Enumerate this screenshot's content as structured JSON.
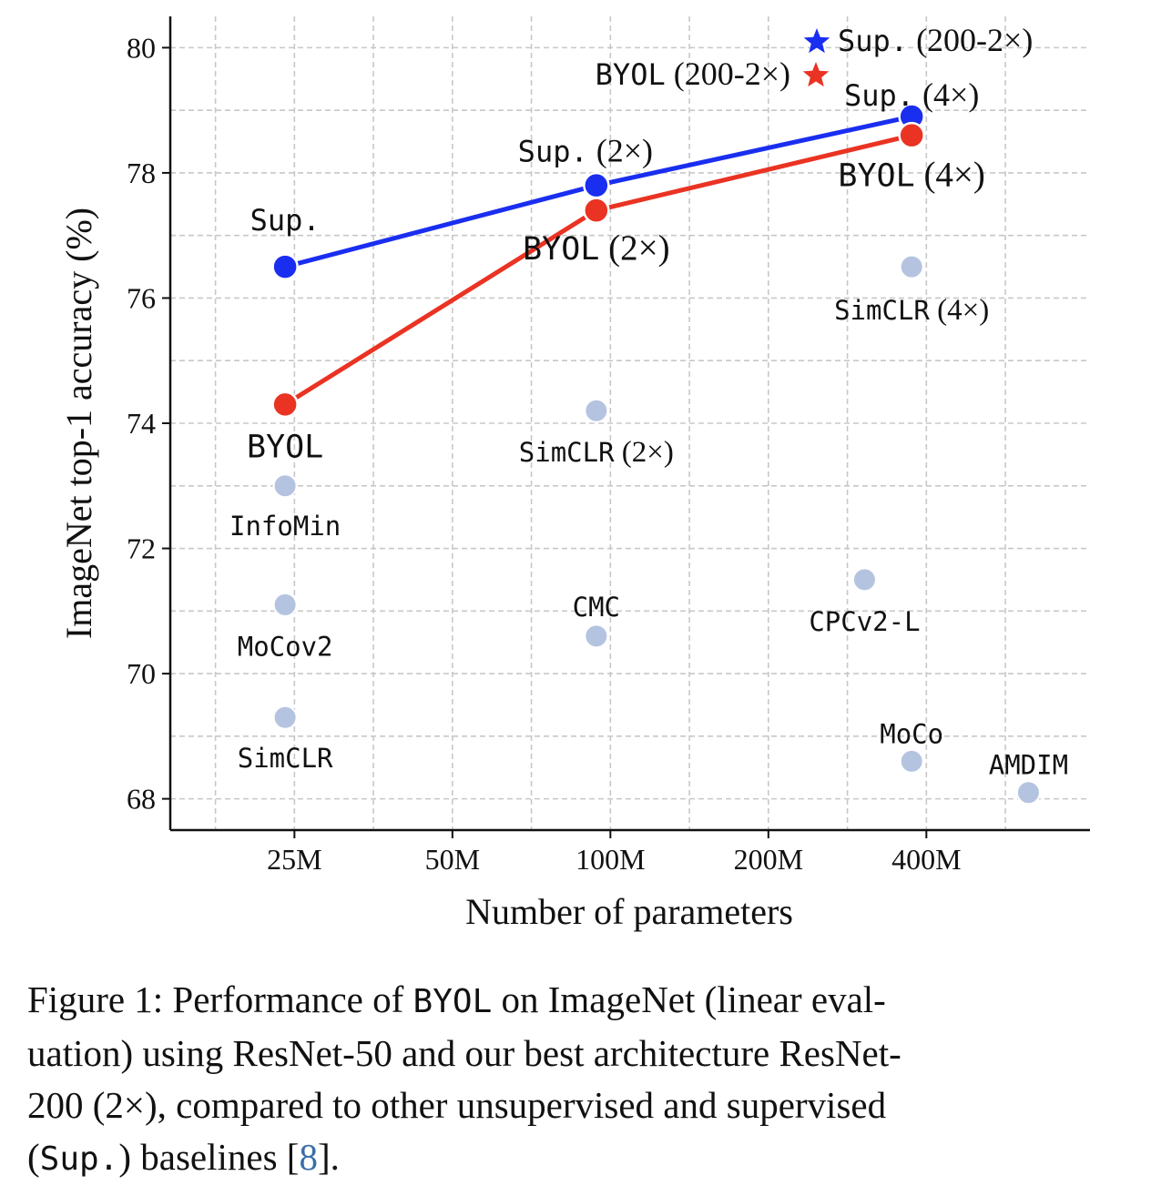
{
  "chart_data": {
    "type": "scatter",
    "xlabel": "Number of parameters",
    "ylabel": "ImageNet top-1 accuracy (%)",
    "x_scale": "log",
    "x_ticks": [
      {
        "value": 25,
        "label": "25M"
      },
      {
        "value": 50,
        "label": "50M"
      },
      {
        "value": 100,
        "label": "100M"
      },
      {
        "value": 200,
        "label": "200M"
      },
      {
        "value": 400,
        "label": "400M"
      }
    ],
    "y_ticks": [
      68,
      70,
      72,
      74,
      76,
      78,
      80
    ],
    "xlim": [
      14.5,
      820
    ],
    "ylim": [
      67.5,
      80.5
    ],
    "grid": true,
    "legend_position": "top-right",
    "legend": [
      {
        "label_mono": "Sup.",
        "label_serif": "(200-2×)",
        "marker": "star",
        "color": "#1a2ef0"
      },
      {
        "label_mono": "BYOL",
        "label_serif": "(200-2×)",
        "marker": "star",
        "color": "#ea3323"
      }
    ],
    "series": [
      {
        "name": "Sup.",
        "color": "#1a2ef0",
        "points": [
          {
            "x": 24,
            "y": 76.5,
            "label_mono": "Sup.",
            "label_serif": ""
          },
          {
            "x": 94,
            "y": 77.8,
            "label_mono": "Sup.",
            "label_serif": "(2×)"
          },
          {
            "x": 375,
            "y": 78.9,
            "label_mono": "Sup.",
            "label_serif": "(4×)"
          }
        ]
      },
      {
        "name": "BYOL",
        "color": "#ea3323",
        "points": [
          {
            "x": 24,
            "y": 74.3,
            "label_mono": "BYOL",
            "label_serif": ""
          },
          {
            "x": 94,
            "y": 77.4,
            "label_mono": "BYOL",
            "label_serif": "(2×)"
          },
          {
            "x": 375,
            "y": 78.6,
            "label_mono": "BYOL",
            "label_serif": "(4×)"
          }
        ]
      }
    ],
    "baselines": {
      "color": "#b4c4e0",
      "points": [
        {
          "x": 24,
          "y": 73.0,
          "label_mono": "InfoMin",
          "label_serif": ""
        },
        {
          "x": 24,
          "y": 71.1,
          "label_mono": "MoCov2",
          "label_serif": ""
        },
        {
          "x": 24,
          "y": 69.3,
          "label_mono": "SimCLR",
          "label_serif": ""
        },
        {
          "x": 94,
          "y": 74.2,
          "label_mono": "SimCLR",
          "label_serif": "(2×)"
        },
        {
          "x": 94,
          "y": 70.6,
          "label_mono": "CMC",
          "label_serif": ""
        },
        {
          "x": 375,
          "y": 76.5,
          "label_mono": "SimCLR",
          "label_serif": "(4×)"
        },
        {
          "x": 305,
          "y": 71.5,
          "label_mono": "CPCv2-L",
          "label_serif": ""
        },
        {
          "x": 375,
          "y": 68.6,
          "label_mono": "MoCo",
          "label_serif": ""
        },
        {
          "x": 626,
          "y": 68.1,
          "label_mono": "AMDIM",
          "label_serif": ""
        }
      ]
    }
  },
  "caption": {
    "line1_a": "Figure 1: Performance of ",
    "line1_mono": "BYOL",
    "line1_b": " on ImageNet (linear eval-",
    "line2": "uation) using ResNet-50 and our best architecture ResNet-",
    "line3": "200 (2×), compared to other unsupervised and supervised",
    "line4_a": "(",
    "line4_mono": "Sup.",
    "line4_b": ") baselines [",
    "line4_ref": "8",
    "line4_c": "]."
  }
}
